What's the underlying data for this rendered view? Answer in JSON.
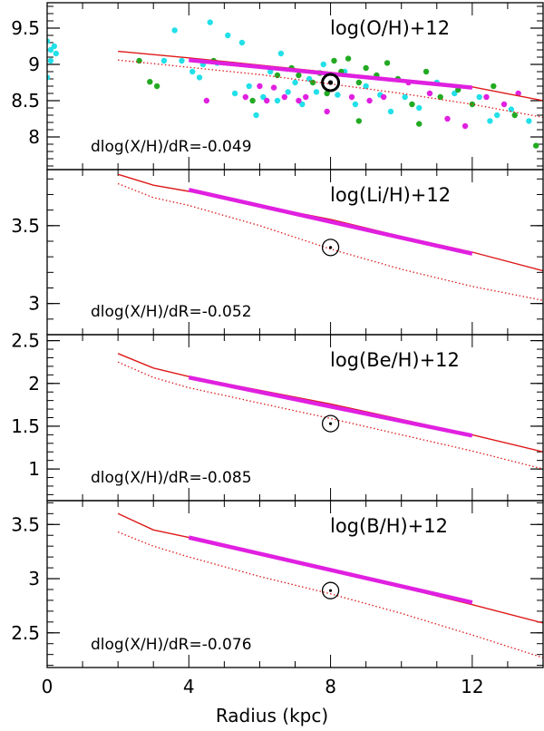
{
  "chart_data": {
    "type": "line",
    "xlabel": "Radius (kpc)",
    "xlim": [
      0,
      14
    ],
    "xticks": [
      0,
      4,
      8,
      12
    ],
    "colors": {
      "model": "#dd1a1a",
      "obs_band": "#e020e0",
      "sun": "#000000",
      "cyan": "#22e0e8",
      "green": "#22aa22",
      "magenta": "#e020e0"
    },
    "panels": [
      {
        "label": "log(O/H)+12",
        "gradient_text": "dlog(X/H)/dR=-0.049",
        "ylim": [
          7.55,
          9.85
        ],
        "yticks": [
          8,
          8.5,
          9,
          9.5
        ],
        "model_solid": {
          "x": [
            2,
            4,
            6,
            8,
            10,
            12,
            14
          ],
          "y": [
            9.18,
            9.09,
            8.99,
            8.89,
            8.79,
            8.69,
            8.5
          ]
        },
        "model_dotted": {
          "x": [
            2,
            4,
            6,
            8,
            10,
            12,
            14
          ],
          "y": [
            9.06,
            8.96,
            8.86,
            8.73,
            8.6,
            8.45,
            8.27
          ]
        },
        "obs_band": {
          "x": [
            4,
            12
          ],
          "y": [
            9.06,
            8.68
          ]
        },
        "sun": {
          "x": 8,
          "y": 8.75
        },
        "points": [
          {
            "x": 0.0,
            "y": 9.32,
            "c": "cyan"
          },
          {
            "x": 0.1,
            "y": 9.2,
            "c": "cyan"
          },
          {
            "x": 0.2,
            "y": 9.25,
            "c": "cyan"
          },
          {
            "x": 0.1,
            "y": 9.05,
            "c": "cyan"
          },
          {
            "x": 0.0,
            "y": 8.82,
            "c": "cyan"
          },
          {
            "x": 0.25,
            "y": 9.15,
            "c": "cyan"
          },
          {
            "x": 2.6,
            "y": 9.05,
            "c": "green"
          },
          {
            "x": 2.9,
            "y": 8.76,
            "c": "green"
          },
          {
            "x": 3.1,
            "y": 8.7,
            "c": "green"
          },
          {
            "x": 3.3,
            "y": 9.05,
            "c": "cyan"
          },
          {
            "x": 3.6,
            "y": 9.47,
            "c": "cyan"
          },
          {
            "x": 3.8,
            "y": 9.05,
            "c": "cyan"
          },
          {
            "x": 4.1,
            "y": 8.9,
            "c": "cyan"
          },
          {
            "x": 4.4,
            "y": 9.0,
            "c": "cyan"
          },
          {
            "x": 4.6,
            "y": 9.58,
            "c": "cyan"
          },
          {
            "x": 4.8,
            "y": 9.02,
            "c": "cyan"
          },
          {
            "x": 4.3,
            "y": 8.82,
            "c": "cyan"
          },
          {
            "x": 4.7,
            "y": 9.05,
            "c": "green"
          },
          {
            "x": 5.1,
            "y": 9.4,
            "c": "cyan"
          },
          {
            "x": 5.3,
            "y": 8.6,
            "c": "cyan"
          },
          {
            "x": 5.5,
            "y": 9.3,
            "c": "cyan"
          },
          {
            "x": 5.7,
            "y": 8.7,
            "c": "cyan"
          },
          {
            "x": 5.9,
            "y": 8.3,
            "c": "cyan"
          },
          {
            "x": 6.1,
            "y": 8.55,
            "c": "cyan"
          },
          {
            "x": 6.3,
            "y": 8.9,
            "c": "cyan"
          },
          {
            "x": 6.5,
            "y": 8.5,
            "c": "cyan"
          },
          {
            "x": 6.6,
            "y": 9.15,
            "c": "cyan"
          },
          {
            "x": 6.8,
            "y": 8.62,
            "c": "cyan"
          },
          {
            "x": 7.0,
            "y": 8.75,
            "c": "cyan"
          },
          {
            "x": 7.2,
            "y": 8.45,
            "c": "cyan"
          },
          {
            "x": 7.4,
            "y": 8.8,
            "c": "cyan"
          },
          {
            "x": 7.6,
            "y": 8.62,
            "c": "cyan"
          },
          {
            "x": 7.8,
            "y": 9.0,
            "c": "cyan"
          },
          {
            "x": 8.2,
            "y": 8.58,
            "c": "cyan"
          },
          {
            "x": 8.4,
            "y": 8.9,
            "c": "cyan"
          },
          {
            "x": 8.7,
            "y": 8.45,
            "c": "cyan"
          },
          {
            "x": 9.0,
            "y": 8.7,
            "c": "cyan"
          },
          {
            "x": 9.4,
            "y": 8.58,
            "c": "cyan"
          },
          {
            "x": 9.7,
            "y": 8.35,
            "c": "cyan"
          },
          {
            "x": 10.1,
            "y": 8.55,
            "c": "cyan"
          },
          {
            "x": 10.5,
            "y": 8.4,
            "c": "cyan"
          },
          {
            "x": 11.0,
            "y": 8.75,
            "c": "cyan"
          },
          {
            "x": 11.5,
            "y": 8.6,
            "c": "cyan"
          },
          {
            "x": 12.2,
            "y": 8.55,
            "c": "cyan"
          },
          {
            "x": 12.7,
            "y": 8.3,
            "c": "cyan"
          },
          {
            "x": 13.1,
            "y": 8.38,
            "c": "cyan"
          },
          {
            "x": 12.5,
            "y": 8.22,
            "c": "cyan"
          },
          {
            "x": 13.6,
            "y": 8.22,
            "c": "cyan"
          },
          {
            "x": 5.6,
            "y": 8.55,
            "c": "magenta"
          },
          {
            "x": 6.0,
            "y": 8.7,
            "c": "magenta"
          },
          {
            "x": 6.2,
            "y": 8.5,
            "c": "magenta"
          },
          {
            "x": 6.4,
            "y": 8.68,
            "c": "magenta"
          },
          {
            "x": 6.7,
            "y": 8.55,
            "c": "magenta"
          },
          {
            "x": 7.1,
            "y": 8.5,
            "c": "magenta"
          },
          {
            "x": 7.3,
            "y": 8.55,
            "c": "magenta"
          },
          {
            "x": 7.9,
            "y": 8.35,
            "c": "magenta"
          },
          {
            "x": 8.6,
            "y": 8.55,
            "c": "magenta"
          },
          {
            "x": 9.1,
            "y": 8.5,
            "c": "magenta"
          },
          {
            "x": 9.5,
            "y": 8.55,
            "c": "magenta"
          },
          {
            "x": 10.2,
            "y": 8.75,
            "c": "magenta"
          },
          {
            "x": 10.8,
            "y": 8.6,
            "c": "magenta"
          },
          {
            "x": 11.3,
            "y": 8.25,
            "c": "magenta"
          },
          {
            "x": 11.8,
            "y": 8.15,
            "c": "magenta"
          },
          {
            "x": 12.4,
            "y": 8.55,
            "c": "magenta"
          },
          {
            "x": 12.9,
            "y": 8.45,
            "c": "magenta"
          },
          {
            "x": 13.3,
            "y": 8.6,
            "c": "magenta"
          },
          {
            "x": 4.5,
            "y": 8.5,
            "c": "magenta"
          },
          {
            "x": 6.5,
            "y": 8.85,
            "c": "green"
          },
          {
            "x": 6.9,
            "y": 8.95,
            "c": "green"
          },
          {
            "x": 7.1,
            "y": 8.85,
            "c": "green"
          },
          {
            "x": 7.5,
            "y": 8.75,
            "c": "green"
          },
          {
            "x": 7.7,
            "y": 8.88,
            "c": "green"
          },
          {
            "x": 8.1,
            "y": 9.05,
            "c": "green"
          },
          {
            "x": 8.3,
            "y": 8.9,
            "c": "green"
          },
          {
            "x": 8.5,
            "y": 9.08,
            "c": "green"
          },
          {
            "x": 8.8,
            "y": 8.75,
            "c": "green"
          },
          {
            "x": 9.0,
            "y": 8.95,
            "c": "green"
          },
          {
            "x": 9.3,
            "y": 8.85,
            "c": "green"
          },
          {
            "x": 9.6,
            "y": 9.02,
            "c": "green"
          },
          {
            "x": 9.9,
            "y": 8.8,
            "c": "green"
          },
          {
            "x": 10.3,
            "y": 8.45,
            "c": "green"
          },
          {
            "x": 10.7,
            "y": 8.9,
            "c": "green"
          },
          {
            "x": 11.1,
            "y": 8.55,
            "c": "green"
          },
          {
            "x": 11.6,
            "y": 8.65,
            "c": "green"
          },
          {
            "x": 12.0,
            "y": 8.45,
            "c": "green"
          },
          {
            "x": 12.6,
            "y": 8.7,
            "c": "green"
          },
          {
            "x": 13.2,
            "y": 8.3,
            "c": "green"
          },
          {
            "x": 13.8,
            "y": 7.88,
            "c": "green"
          },
          {
            "x": 8.8,
            "y": 8.22,
            "c": "green"
          },
          {
            "x": 10.5,
            "y": 8.18,
            "c": "green"
          },
          {
            "x": 5.8,
            "y": 8.5,
            "c": "green"
          },
          {
            "x": 7.9,
            "y": 8.6,
            "c": "green"
          }
        ]
      },
      {
        "label": "log(Li/H)+12",
        "gradient_text": "dlog(X/H)/dR=-0.052",
        "ylim": [
          2.8,
          3.86
        ],
        "yticks": [
          3,
          3.5
        ],
        "model_solid": {
          "x": [
            2,
            3,
            4,
            6,
            8,
            10,
            12,
            14
          ],
          "y": [
            3.83,
            3.76,
            3.72,
            3.63,
            3.54,
            3.43,
            3.33,
            3.21
          ]
        },
        "model_dotted": {
          "x": [
            2,
            3,
            4,
            6,
            8,
            10,
            12,
            14
          ],
          "y": [
            3.77,
            3.68,
            3.63,
            3.5,
            3.35,
            3.22,
            3.11,
            3.02
          ]
        },
        "obs_band": {
          "x": [
            4,
            12
          ],
          "y": [
            3.73,
            3.32
          ]
        },
        "sun": {
          "x": 8,
          "y": 3.36
        },
        "points": []
      },
      {
        "label": "log(Be/H)+12",
        "gradient_text": "dlog(X/H)/dR=-0.085",
        "ylim": [
          0.63,
          2.57
        ],
        "yticks": [
          1,
          1.5,
          2,
          2.5
        ],
        "model_solid": {
          "x": [
            2,
            3,
            4,
            6,
            8,
            10,
            12,
            14
          ],
          "y": [
            2.35,
            2.18,
            2.08,
            1.92,
            1.76,
            1.58,
            1.4,
            1.2
          ]
        },
        "model_dotted": {
          "x": [
            2,
            3,
            4,
            6,
            8,
            10,
            12,
            14
          ],
          "y": [
            2.25,
            2.07,
            1.95,
            1.77,
            1.59,
            1.4,
            1.21,
            1.0
          ]
        },
        "obs_band": {
          "x": [
            4,
            12
          ],
          "y": [
            2.07,
            1.39
          ]
        },
        "sun": {
          "x": 8,
          "y": 1.53
        },
        "points": []
      },
      {
        "label": "log(B/H)+12",
        "gradient_text": "dlog(X/H)/dR=-0.076",
        "ylim": [
          2.18,
          3.72
        ],
        "yticks": [
          2.5,
          3,
          3.5
        ],
        "model_solid": {
          "x": [
            2,
            3,
            4,
            6,
            8,
            10,
            12,
            14
          ],
          "y": [
            3.6,
            3.45,
            3.38,
            3.22,
            3.08,
            2.92,
            2.76,
            2.59
          ]
        },
        "model_dotted": {
          "x": [
            2,
            3,
            4,
            6,
            8,
            10,
            12,
            14
          ],
          "y": [
            3.43,
            3.3,
            3.2,
            3.02,
            2.86,
            2.68,
            2.48,
            2.27
          ]
        },
        "obs_band": {
          "x": [
            4,
            12
          ],
          "y": [
            3.38,
            2.78
          ]
        },
        "sun": {
          "x": 8,
          "y": 2.89
        },
        "points": []
      }
    ]
  }
}
